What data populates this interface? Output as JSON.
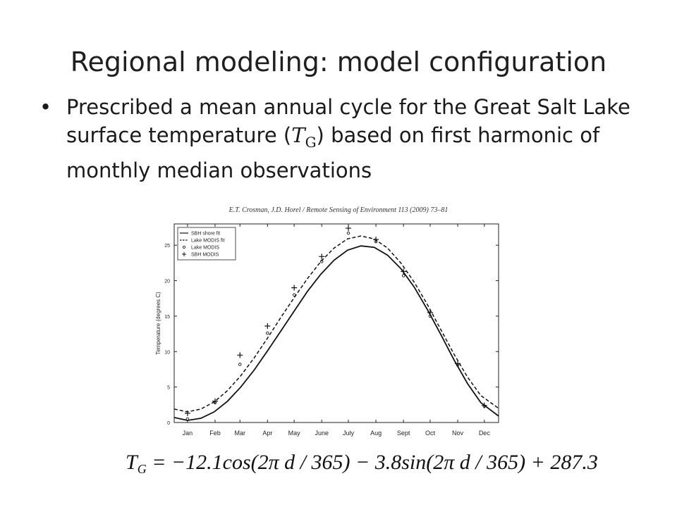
{
  "slide": {
    "title": "Regional modeling: model configuration",
    "bullet_before": "Prescribed a mean annual cycle for the Great Salt Lake surface temperature (",
    "symbol": "T",
    "symbol_sub": "G",
    "bullet_after": ") based on first harmonic of monthly median observations",
    "citation": "E.T. Crosman, J.D. Horel / Remote Sensing of Environment 113 (2009) 73–81",
    "formula": {
      "lhs": "T",
      "lhs_sub": "G",
      "rhs": " = −12.1cos(2π d / 365) − 3.8sin(2π d / 365) + 287.3"
    }
  },
  "chart_data": {
    "type": "line",
    "title": "",
    "xlabel": "",
    "ylabel": "Temperature (degrees C)",
    "xlim": [
      0,
      365
    ],
    "ylim": [
      0,
      28
    ],
    "yticks": [
      0,
      5,
      10,
      15,
      20,
      25
    ],
    "month_labels": [
      "Jan",
      "Feb",
      "Mar",
      "Apr",
      "May",
      "June",
      "July",
      "Aug",
      "Sept",
      "Oct",
      "Nov",
      "Dec"
    ],
    "month_days": [
      15,
      46,
      74,
      105,
      135,
      166,
      196,
      227,
      258,
      288,
      319,
      349
    ],
    "legend_position": "top-left",
    "grid": false,
    "series": [
      {
        "name": "SBH shore fit",
        "style": "solid",
        "x": [
          0,
          15,
          30,
          45,
          60,
          75,
          90,
          105,
          120,
          135,
          150,
          165,
          180,
          195,
          210,
          225,
          240,
          255,
          270,
          285,
          300,
          315,
          330,
          345,
          365
        ],
        "y": [
          0.7,
          0.3,
          0.6,
          1.5,
          3.0,
          5.0,
          7.4,
          10.1,
          12.9,
          15.7,
          18.5,
          20.9,
          22.9,
          24.3,
          24.9,
          24.7,
          23.6,
          21.7,
          19.1,
          15.9,
          12.4,
          8.8,
          5.5,
          2.8,
          0.9
        ]
      },
      {
        "name": "Lake MODIS fit",
        "style": "dashed",
        "x": [
          0,
          15,
          30,
          45,
          60,
          75,
          90,
          105,
          120,
          135,
          150,
          165,
          180,
          195,
          210,
          225,
          240,
          255,
          270,
          285,
          300,
          315,
          330,
          345,
          365
        ],
        "y": [
          1.9,
          1.5,
          1.9,
          2.9,
          4.5,
          6.6,
          9.1,
          11.9,
          14.8,
          17.6,
          20.3,
          22.7,
          24.6,
          25.9,
          26.3,
          25.9,
          24.6,
          22.5,
          19.8,
          16.6,
          13.1,
          9.6,
          6.4,
          3.8,
          2.0
        ]
      },
      {
        "name": "Lake MODIS",
        "style": "circle",
        "x": [
          15,
          46,
          74,
          105,
          135,
          166,
          196,
          227,
          258,
          288,
          319,
          349
        ],
        "y": [
          0.5,
          2.8,
          8.2,
          12.6,
          18.0,
          22.7,
          26.7,
          25.5,
          20.7,
          15.0,
          8.1,
          2.3
        ]
      },
      {
        "name": "SBH MODIS",
        "style": "plus",
        "x": [
          15,
          46,
          74,
          105,
          135,
          166,
          196,
          227,
          258,
          288,
          319,
          349
        ],
        "y": [
          1.3,
          3.0,
          9.5,
          13.6,
          19.0,
          23.4,
          27.4,
          25.8,
          21.3,
          15.5,
          8.3,
          2.4
        ]
      }
    ]
  }
}
